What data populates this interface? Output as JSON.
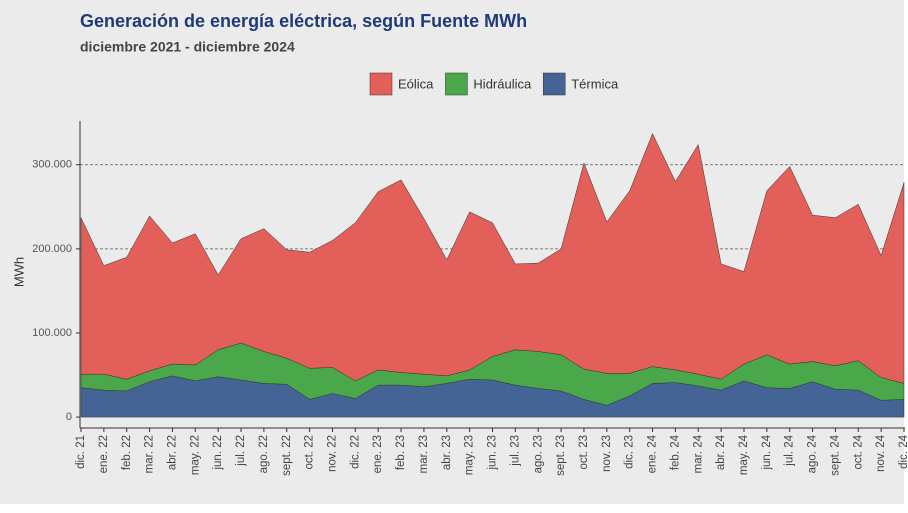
{
  "chart_data": {
    "type": "stacked_area",
    "title": "Generación de energía eléctrica, según Fuente MWh",
    "subtitle": "diciembre 2021 - diciembre 2024",
    "y_label": "MWh",
    "categories": [
      "dic. 21",
      "ene. 22",
      "feb. 22",
      "mar. 22",
      "abr. 22",
      "may. 22",
      "jun. 22",
      "jul. 22",
      "ago. 22",
      "sept. 22",
      "oct. 22",
      "nov. 22",
      "dic. 22",
      "ene. 23",
      "feb. 23",
      "mar. 23",
      "abr. 23",
      "may. 23",
      "jun. 23",
      "jul. 23",
      "ago. 23",
      "sept. 23",
      "oct. 23",
      "nov. 23",
      "dic. 23",
      "ene. 24",
      "feb. 24",
      "mar. 24",
      "abr. 24",
      "may. 24",
      "jun. 24",
      "jul. 24",
      "ago. 24",
      "sept. 24",
      "oct. 24",
      "nov. 24",
      "dic. 24"
    ],
    "series": [
      {
        "name": "Eólica",
        "color": "#e35f5a",
        "values": [
          186000,
          129000,
          145000,
          184000,
          144000,
          156000,
          89000,
          124000,
          146000,
          129000,
          138000,
          151000,
          188000,
          212000,
          229000,
          185000,
          138000,
          188000,
          159000,
          102000,
          105000,
          126000,
          245000,
          180000,
          217000,
          277000,
          224000,
          273000,
          137000,
          110000,
          195000,
          235000,
          174000,
          176000,
          186000,
          145000,
          239000
        ]
      },
      {
        "name": "Hidráulica",
        "color": "#4aa84a",
        "values": [
          16000,
          19000,
          14000,
          13000,
          14000,
          19000,
          32000,
          44000,
          38000,
          31000,
          37000,
          31000,
          21000,
          18000,
          15000,
          15000,
          9000,
          11000,
          28000,
          42000,
          44000,
          43000,
          36000,
          38000,
          27000,
          20000,
          15000,
          14000,
          13000,
          20000,
          39000,
          29000,
          24000,
          28000,
          35000,
          27000,
          19000
        ]
      },
      {
        "name": "Térmica",
        "color": "#456496",
        "values": [
          35000,
          32000,
          31000,
          42000,
          49000,
          43000,
          48000,
          44000,
          40000,
          39000,
          21000,
          28000,
          22000,
          38000,
          38000,
          36000,
          40000,
          45000,
          44000,
          38000,
          34000,
          31000,
          21000,
          14000,
          25000,
          40000,
          41000,
          37000,
          32000,
          43000,
          35000,
          34000,
          42000,
          33000,
          32000,
          20000,
          21000
        ]
      }
    ],
    "ylim": [
      -13000,
      352000
    ],
    "yticks": [
      0,
      {
        "value": 100000,
        "label": "100.000"
      },
      {
        "value": 200000,
        "label": "200.000"
      },
      {
        "value": 300000,
        "label": "300.000"
      }
    ],
    "grid": true
  }
}
